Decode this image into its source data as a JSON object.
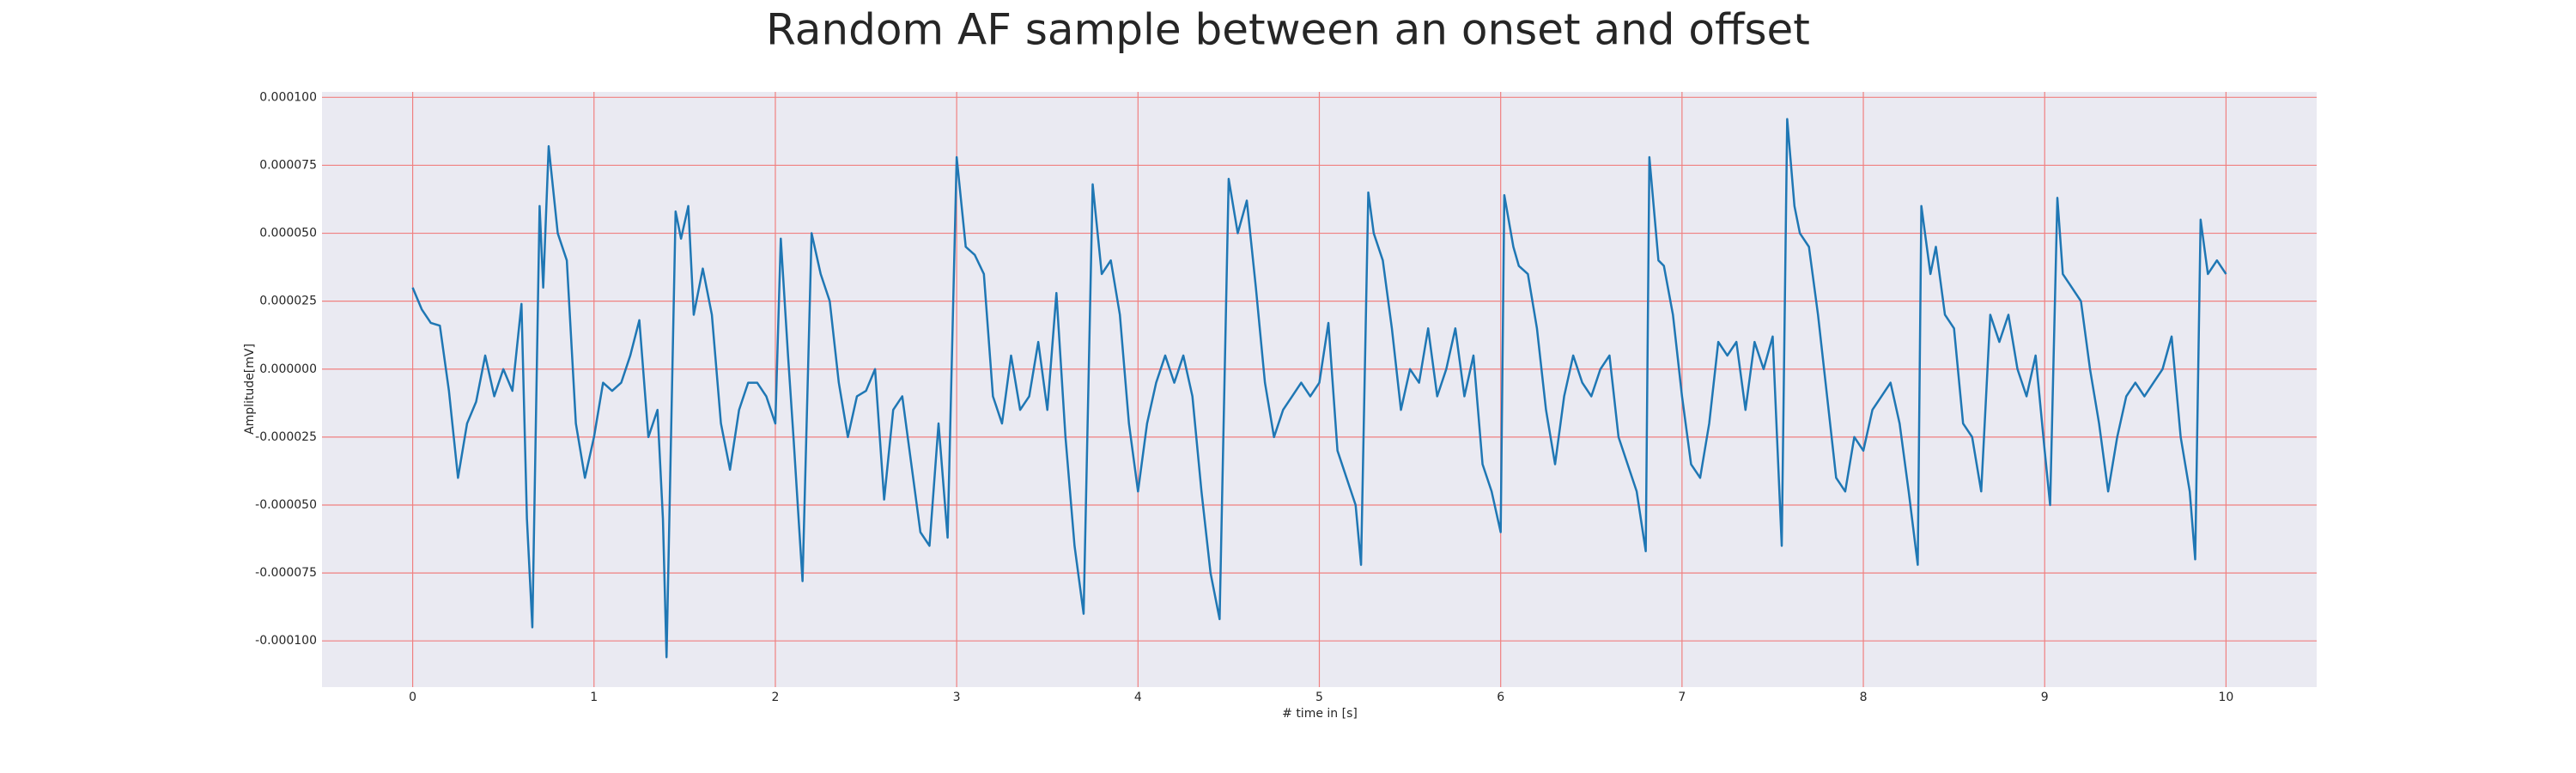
{
  "chart_data": {
    "type": "line",
    "title": "Random AF sample between an onset and offset",
    "xlabel": "# time in [s]",
    "ylabel": "Amplitude[mV]",
    "color": "#1f77b4",
    "background": "#eaeaf2",
    "grid": true,
    "grid_color": "#f08080",
    "xlim": [
      -0.5,
      10.5
    ],
    "ylim": [
      -0.000117,
      0.000102
    ],
    "xticks": [
      0,
      1,
      2,
      3,
      4,
      5,
      6,
      7,
      8,
      9,
      10
    ],
    "yticks": [
      {
        "value": -0.0001,
        "label": "-0.000100"
      },
      {
        "value": -7.5e-05,
        "label": "-0.000075"
      },
      {
        "value": -5e-05,
        "label": "-0.000050"
      },
      {
        "value": -2.5e-05,
        "label": "-0.000025"
      },
      {
        "value": 0,
        "label": "0.000000"
      },
      {
        "value": 2.5e-05,
        "label": "0.000025"
      },
      {
        "value": 5e-05,
        "label": "0.000050"
      },
      {
        "value": 7.5e-05,
        "label": "0.000075"
      },
      {
        "value": 0.0001,
        "label": "0.000100"
      }
    ],
    "x": [
      0,
      0.05,
      0.1,
      0.15,
      0.2,
      0.25,
      0.3,
      0.35,
      0.4,
      0.45,
      0.5,
      0.55,
      0.6,
      0.63,
      0.66,
      0.7,
      0.72,
      0.75,
      0.8,
      0.85,
      0.9,
      0.95,
      1.0,
      1.05,
      1.1,
      1.15,
      1.2,
      1.25,
      1.3,
      1.35,
      1.38,
      1.4,
      1.45,
      1.48,
      1.52,
      1.55,
      1.6,
      1.65,
      1.7,
      1.75,
      1.8,
      1.85,
      1.9,
      1.95,
      2.0,
      2.03,
      2.07,
      2.1,
      2.15,
      2.2,
      2.25,
      2.3,
      2.35,
      2.4,
      2.45,
      2.5,
      2.55,
      2.6,
      2.65,
      2.7,
      2.75,
      2.8,
      2.85,
      2.9,
      2.95,
      3.0,
      3.05,
      3.1,
      3.15,
      3.2,
      3.25,
      3.3,
      3.35,
      3.4,
      3.45,
      3.5,
      3.55,
      3.6,
      3.65,
      3.7,
      3.75,
      3.8,
      3.85,
      3.9,
      3.95,
      4.0,
      4.05,
      4.1,
      4.15,
      4.2,
      4.25,
      4.3,
      4.35,
      4.4,
      4.45,
      4.5,
      4.55,
      4.6,
      4.65,
      4.7,
      4.75,
      4.8,
      4.85,
      4.9,
      4.95,
      5.0,
      5.05,
      5.1,
      5.15,
      5.2,
      5.23,
      5.27,
      5.3,
      5.35,
      5.4,
      5.45,
      5.5,
      5.55,
      5.6,
      5.65,
      5.7,
      5.75,
      5.8,
      5.85,
      5.9,
      5.95,
      6.0,
      6.02,
      6.07,
      6.1,
      6.15,
      6.2,
      6.25,
      6.3,
      6.35,
      6.4,
      6.45,
      6.5,
      6.55,
      6.6,
      6.65,
      6.7,
      6.75,
      6.8,
      6.82,
      6.87,
      6.9,
      6.95,
      7.0,
      7.05,
      7.1,
      7.15,
      7.2,
      7.25,
      7.3,
      7.35,
      7.4,
      7.45,
      7.5,
      7.55,
      7.58,
      7.62,
      7.65,
      7.7,
      7.75,
      7.8,
      7.85,
      7.9,
      7.95,
      8.0,
      8.05,
      8.1,
      8.15,
      8.2,
      8.25,
      8.3,
      8.32,
      8.37,
      8.4,
      8.45,
      8.5,
      8.55,
      8.6,
      8.65,
      8.7,
      8.75,
      8.8,
      8.85,
      8.9,
      8.95,
      9.0,
      9.03,
      9.07,
      9.1,
      9.15,
      9.2,
      9.25,
      9.3,
      9.35,
      9.4,
      9.45,
      9.5,
      9.55,
      9.6,
      9.65,
      9.7,
      9.75,
      9.8,
      9.83,
      9.86,
      9.9,
      9.95,
      10.0
    ],
    "values": [
      3e-05,
      2.2e-05,
      1.7e-05,
      1.6e-05,
      -8e-06,
      -4e-05,
      -2e-05,
      -1.2e-05,
      5e-06,
      -1e-05,
      0,
      -8e-06,
      2.4e-05,
      -5.5e-05,
      -9.5e-05,
      6e-05,
      3e-05,
      8.2e-05,
      5e-05,
      4e-05,
      -2e-05,
      -4e-05,
      -2.5e-05,
      -5e-06,
      -8e-06,
      -5e-06,
      5e-06,
      1.8e-05,
      -2.5e-05,
      -1.5e-05,
      -5.5e-05,
      -0.000106,
      5.8e-05,
      4.8e-05,
      6e-05,
      2e-05,
      3.7e-05,
      2e-05,
      -2e-05,
      -3.7e-05,
      -1.5e-05,
      -5e-06,
      -5e-06,
      -1e-05,
      -2e-05,
      4.8e-05,
      5e-06,
      -2.5e-05,
      -7.8e-05,
      5e-05,
      3.5e-05,
      2.5e-05,
      -5e-06,
      -2.5e-05,
      -1e-05,
      -8e-06,
      0,
      -4.8e-05,
      -1.5e-05,
      -1e-05,
      -3.5e-05,
      -6e-05,
      -6.5e-05,
      -2e-05,
      -6.2e-05,
      7.8e-05,
      4.5e-05,
      4.2e-05,
      3.5e-05,
      -1e-05,
      -2e-05,
      5e-06,
      -1.5e-05,
      -1e-05,
      1e-05,
      -1.5e-05,
      2.8e-05,
      -2.5e-05,
      -6.5e-05,
      -9e-05,
      6.8e-05,
      3.5e-05,
      4e-05,
      2e-05,
      -2e-05,
      -4.5e-05,
      -2e-05,
      -5e-06,
      5e-06,
      -5e-06,
      5e-06,
      -1e-05,
      -4.5e-05,
      -7.5e-05,
      -9.2e-05,
      7e-05,
      5e-05,
      6.2e-05,
      3e-05,
      -5e-06,
      -2.5e-05,
      -1.5e-05,
      -1e-05,
      -5e-06,
      -1e-05,
      -5e-06,
      1.7e-05,
      -3e-05,
      -4e-05,
      -5e-05,
      -7.2e-05,
      6.5e-05,
      5e-05,
      4e-05,
      1.5e-05,
      -1.5e-05,
      0,
      -5e-06,
      1.5e-05,
      -1e-05,
      0,
      1.5e-05,
      -1e-05,
      5e-06,
      -3.5e-05,
      -4.5e-05,
      -6e-05,
      6.4e-05,
      4.5e-05,
      3.8e-05,
      3.5e-05,
      1.5e-05,
      -1.5e-05,
      -3.5e-05,
      -1e-05,
      5e-06,
      -5e-06,
      -1e-05,
      0,
      5e-06,
      -2.5e-05,
      -3.5e-05,
      -4.5e-05,
      -6.7e-05,
      7.8e-05,
      4e-05,
      3.8e-05,
      2e-05,
      -1e-05,
      -3.5e-05,
      -4e-05,
      -2e-05,
      1e-05,
      5e-06,
      1e-05,
      -1.5e-05,
      1e-05,
      0,
      1.2e-05,
      -6.5e-05,
      9.2e-05,
      6e-05,
      5e-05,
      4.5e-05,
      2e-05,
      -1e-05,
      -4e-05,
      -4.5e-05,
      -2.5e-05,
      -3e-05,
      -1.5e-05,
      -1e-05,
      -5e-06,
      -2e-05,
      -4.5e-05,
      -7.2e-05,
      6e-05,
      3.5e-05,
      4.5e-05,
      2e-05,
      1.5e-05,
      -2e-05,
      -2.5e-05,
      -4.5e-05,
      2e-05,
      1e-05,
      2e-05,
      0,
      -1e-05,
      5e-06,
      -3e-05,
      -5e-05,
      6.3e-05,
      3.5e-05,
      3e-05,
      2.5e-05,
      0,
      -2e-05,
      -4.5e-05,
      -2.5e-05,
      -1e-05,
      -5e-06,
      -1e-05,
      -5e-06,
      0,
      1.2e-05,
      -2.5e-05,
      -4.5e-05,
      -7e-05,
      5.5e-05,
      3.5e-05,
      4e-05,
      3.5e-05
    ]
  }
}
